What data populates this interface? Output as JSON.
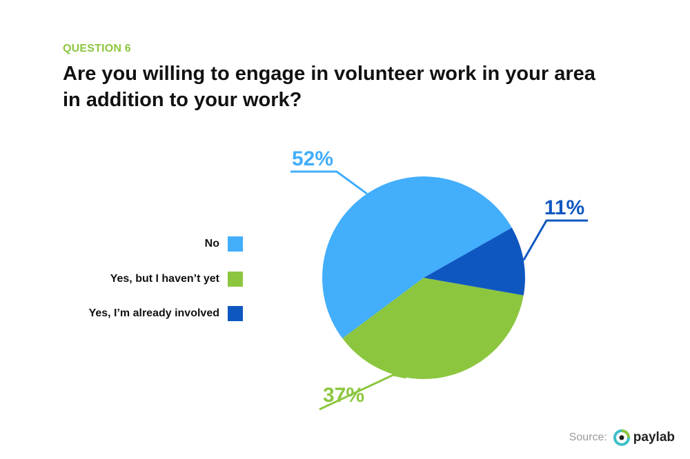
{
  "question_label": "QUESTION 6",
  "chart_data": {
    "type": "pie",
    "title": "Are you willing to engage in volunteer work in your area in addition to your work?",
    "slices": [
      {
        "label": "No",
        "value": 52,
        "display": "52%",
        "color": "#42aefc"
      },
      {
        "label": "Yes, but I haven’t yet",
        "value": 37,
        "display": "37%",
        "color": "#8cc63f"
      },
      {
        "label": "Yes, I’m already involved",
        "value": 11,
        "display": "11%",
        "color": "#0f57c0"
      }
    ],
    "legend_position": "left"
  },
  "footer": {
    "source_label": "Source:",
    "brand_name": "paylab",
    "brand_icon": "paylab-logo-icon"
  }
}
